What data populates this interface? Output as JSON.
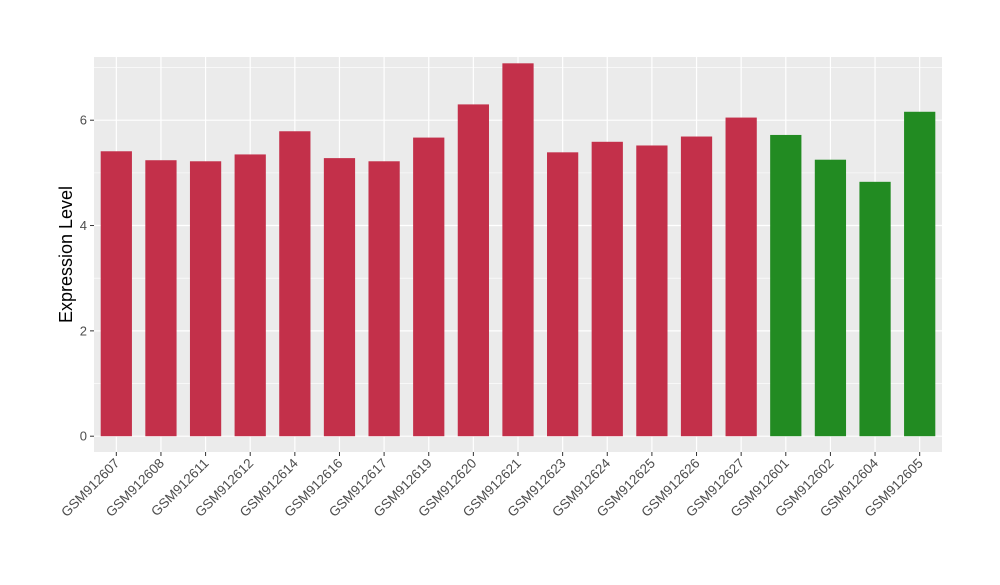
{
  "chart_data": {
    "type": "bar",
    "ylabel": "Expression Level",
    "xlabel": "",
    "ylim": [
      -0.3,
      7.2
    ],
    "yticks": [
      0,
      2,
      4,
      6
    ],
    "grid": true,
    "categories": [
      "GSM912607",
      "GSM912608",
      "GSM912611",
      "GSM912612",
      "GSM912614",
      "GSM912616",
      "GSM912617",
      "GSM912619",
      "GSM912620",
      "GSM912621",
      "GSM912623",
      "GSM912624",
      "GSM912625",
      "GSM912626",
      "GSM912627",
      "GSM912601",
      "GSM912602",
      "GSM912604",
      "GSM912605"
    ],
    "values": [
      5.41,
      5.24,
      5.22,
      5.35,
      5.79,
      5.28,
      5.22,
      5.67,
      6.3,
      7.08,
      5.39,
      5.59,
      5.52,
      5.69,
      6.05,
      5.72,
      5.25,
      4.83,
      6.16
    ],
    "colors": [
      "#C3304A",
      "#C3304A",
      "#C3304A",
      "#C3304A",
      "#C3304A",
      "#C3304A",
      "#C3304A",
      "#C3304A",
      "#C3304A",
      "#C3304A",
      "#C3304A",
      "#C3304A",
      "#C3304A",
      "#C3304A",
      "#C3304A",
      "#228B22",
      "#228B22",
      "#228B22",
      "#228B22"
    ],
    "panel_background": "#EBEBEB",
    "grid_color": "#FFFFFF",
    "axis_text_color": "#4D4D4D"
  }
}
